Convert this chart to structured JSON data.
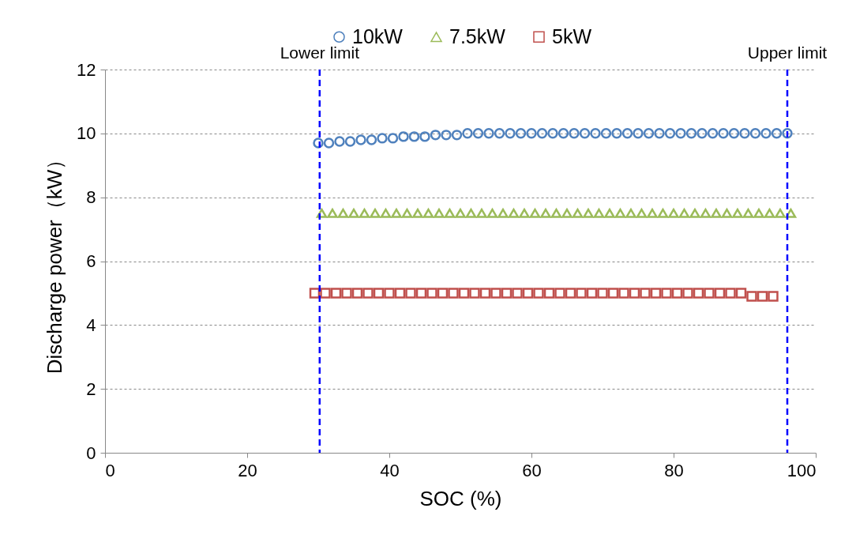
{
  "chart_data": {
    "type": "scatter",
    "xlabel": "SOC (%)",
    "ylabel": "Discharge power（kW）",
    "xlim": [
      0,
      100
    ],
    "xticks": [
      0,
      20,
      40,
      60,
      80,
      100
    ],
    "ylim": [
      0,
      12
    ],
    "yticks": [
      0,
      2,
      4,
      6,
      8,
      10,
      12
    ],
    "grid": "y",
    "legend": "top",
    "series": [
      {
        "name": "10kW",
        "color": "#4f81bd",
        "marker": "circle",
        "x": [
          30,
          31.5,
          33,
          34.5,
          36,
          37.5,
          39,
          40.5,
          42,
          43.5,
          45,
          46.5,
          48,
          49.5,
          51,
          52.5,
          54,
          55.5,
          57,
          58.5,
          60,
          61.5,
          63,
          64.5,
          66,
          67.5,
          69,
          70.5,
          72,
          73.5,
          75,
          76.5,
          78,
          79.5,
          81,
          82.5,
          84,
          85.5,
          87,
          88.5,
          90,
          91.5,
          93,
          94.5,
          96
        ],
        "values": [
          9.7,
          9.7,
          9.75,
          9.75,
          9.8,
          9.8,
          9.85,
          9.85,
          9.9,
          9.9,
          9.9,
          9.95,
          9.95,
          9.95,
          10,
          10,
          10,
          10,
          10,
          10,
          10,
          10,
          10,
          10,
          10,
          10,
          10,
          10,
          10,
          10,
          10,
          10,
          10,
          10,
          10,
          10,
          10,
          10,
          10,
          10,
          10,
          10,
          10,
          10,
          10
        ]
      },
      {
        "name": "7.5kW",
        "color": "#9bbb59",
        "marker": "triangle",
        "x": [
          30.5,
          32,
          33.5,
          35,
          36.5,
          38,
          39.5,
          41,
          42.5,
          44,
          45.5,
          47,
          48.5,
          50,
          51.5,
          53,
          54.5,
          56,
          57.5,
          59,
          60.5,
          62,
          63.5,
          65,
          66.5,
          68,
          69.5,
          71,
          72.5,
          74,
          75.5,
          77,
          78.5,
          80,
          81.5,
          83,
          84.5,
          86,
          87.5,
          89,
          90.5,
          92,
          93.5,
          95,
          96.5
        ],
        "values": [
          7.5,
          7.5,
          7.5,
          7.5,
          7.5,
          7.5,
          7.5,
          7.5,
          7.5,
          7.5,
          7.5,
          7.5,
          7.5,
          7.5,
          7.5,
          7.5,
          7.5,
          7.5,
          7.5,
          7.5,
          7.5,
          7.5,
          7.5,
          7.5,
          7.5,
          7.5,
          7.5,
          7.5,
          7.5,
          7.5,
          7.5,
          7.5,
          7.5,
          7.5,
          7.5,
          7.5,
          7.5,
          7.5,
          7.5,
          7.5,
          7.5,
          7.5,
          7.5,
          7.5,
          7.5
        ]
      },
      {
        "name": "5kW",
        "color": "#c0504d",
        "marker": "square",
        "x": [
          29.5,
          31,
          32.5,
          34,
          35.5,
          37,
          38.5,
          40,
          41.5,
          43,
          44.5,
          46,
          47.5,
          49,
          50.5,
          52,
          53.5,
          55,
          56.5,
          58,
          59.5,
          61,
          62.5,
          64,
          65.5,
          67,
          68.5,
          70,
          71.5,
          73,
          74.5,
          76,
          77.5,
          79,
          80.5,
          82,
          83.5,
          85,
          86.5,
          88,
          89.5,
          91,
          92.5,
          94
        ],
        "values": [
          5,
          5,
          5,
          5,
          5,
          5,
          5,
          5,
          5,
          5,
          5,
          5,
          5,
          5,
          5,
          5,
          5,
          5,
          5,
          5,
          5,
          5,
          5,
          5,
          5,
          5,
          5,
          5,
          5,
          5,
          5,
          5,
          5,
          5,
          5,
          5,
          5,
          5,
          5,
          5,
          5,
          4.9,
          4.9,
          4.9
        ]
      }
    ],
    "ref_lines": [
      {
        "axis": "x",
        "value": 30.2,
        "label": "Lower limit",
        "color": "#0000ff",
        "line_style": "dashed"
      },
      {
        "axis": "x",
        "value": 96,
        "label": "Upper limit",
        "color": "#0000ff",
        "line_style": "dashed"
      }
    ]
  }
}
